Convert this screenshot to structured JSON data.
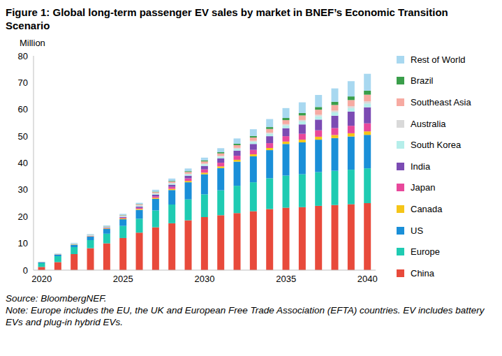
{
  "chart_data": {
    "type": "bar",
    "title": "Figure 1: Global long-term passenger EV sales by market in BNEF’s Economic Transition Scenario",
    "y_label": "Million",
    "source": "Source: BloombergNEF.",
    "note": "Note: Europe includes the EU, the UK and European Free Trade Association (EFTA) countries. EV includes battery EVs and plug-in hybrid EVs.",
    "stacked": true,
    "grid": false,
    "legend": "right",
    "categories": [
      "2020",
      null,
      null,
      null,
      null,
      "2025",
      null,
      null,
      null,
      null,
      "2030",
      null,
      null,
      null,
      null,
      "2035",
      null,
      null,
      null,
      null,
      "2040"
    ],
    "ylim": [
      0,
      80
    ],
    "yticks": [
      0,
      10,
      20,
      30,
      40,
      50,
      60,
      70,
      80
    ],
    "series": [
      {
        "name": "China",
        "color": "#e84a3b",
        "values": [
          1.2,
          3.0,
          6.0,
          8.2,
          10.0,
          12.0,
          14.0,
          16.0,
          17.5,
          18.6,
          19.8,
          20.5,
          21.3,
          22.0,
          22.8,
          23.3,
          23.5,
          24.0,
          24.3,
          24.6,
          25.0
        ]
      },
      {
        "name": "Europe",
        "color": "#1fcbb2",
        "values": [
          1.4,
          2.2,
          2.6,
          3.0,
          3.6,
          4.5,
          5.2,
          6.3,
          7.0,
          7.8,
          8.5,
          9.3,
          10.2,
          10.8,
          11.5,
          12.0,
          12.3,
          12.6,
          12.8,
          12.9,
          13.0
        ]
      },
      {
        "name": "US",
        "color": "#1a8fd8",
        "values": [
          0.3,
          0.6,
          0.9,
          1.3,
          1.8,
          2.5,
          3.3,
          4.3,
          5.4,
          6.4,
          7.5,
          8.3,
          9.0,
          9.7,
          10.5,
          11.8,
          11.9,
          12.1,
          12.2,
          12.4,
          12.5
        ]
      },
      {
        "name": "Canada",
        "color": "#f5c518",
        "values": [
          0.05,
          0.08,
          0.12,
          0.15,
          0.2,
          0.3,
          0.35,
          0.4,
          0.45,
          0.5,
          0.6,
          0.65,
          0.7,
          0.75,
          0.8,
          0.9,
          1.0,
          1.1,
          1.15,
          1.2,
          1.3
        ]
      },
      {
        "name": "Japan",
        "color": "#e8489b",
        "values": [
          0.03,
          0.05,
          0.06,
          0.1,
          0.15,
          0.3,
          0.4,
          0.55,
          0.75,
          0.95,
          1.2,
          1.35,
          1.5,
          1.65,
          1.8,
          2.0,
          2.2,
          2.4,
          2.6,
          2.8,
          3.0
        ]
      },
      {
        "name": "India",
        "color": "#7b4bb3",
        "values": [
          0.01,
          0.02,
          0.05,
          0.08,
          0.15,
          0.3,
          0.45,
          0.6,
          0.8,
          1.0,
          1.3,
          1.6,
          1.9,
          2.2,
          2.6,
          3.0,
          3.5,
          4.0,
          4.6,
          5.3,
          6.0
        ]
      },
      {
        "name": "South Korea",
        "color": "#b5eeea",
        "values": [
          0.05,
          0.1,
          0.15,
          0.18,
          0.22,
          0.3,
          0.35,
          0.4,
          0.45,
          0.5,
          0.6,
          0.65,
          0.7,
          0.8,
          0.9,
          1.0,
          1.1,
          1.2,
          1.25,
          1.3,
          1.4
        ]
      },
      {
        "name": "Australia",
        "color": "#d9d9d9",
        "values": [
          0.01,
          0.02,
          0.04,
          0.06,
          0.08,
          0.1,
          0.13,
          0.16,
          0.2,
          0.25,
          0.3,
          0.33,
          0.36,
          0.4,
          0.45,
          0.5,
          0.55,
          0.6,
          0.65,
          0.7,
          0.8
        ]
      },
      {
        "name": "Southeast Asia",
        "color": "#f7aaa2",
        "values": [
          0.01,
          0.02,
          0.05,
          0.08,
          0.12,
          0.2,
          0.3,
          0.4,
          0.5,
          0.65,
          0.8,
          0.9,
          1.0,
          1.2,
          1.35,
          1.5,
          1.7,
          1.9,
          2.1,
          2.3,
          2.5
        ]
      },
      {
        "name": "Brazil",
        "color": "#3a9e4a",
        "values": [
          0.01,
          0.02,
          0.03,
          0.05,
          0.07,
          0.1,
          0.15,
          0.2,
          0.25,
          0.3,
          0.4,
          0.45,
          0.5,
          0.6,
          0.7,
          0.8,
          0.9,
          1.0,
          1.2,
          1.35,
          1.5
        ]
      },
      {
        "name": "Rest of World",
        "color": "#a8d8f0",
        "values": [
          0.1,
          0.15,
          0.2,
          0.25,
          0.3,
          0.4,
          0.5,
          0.7,
          0.9,
          1.0,
          1.0,
          1.5,
          2.0,
          2.5,
          3.0,
          3.7,
          4.0,
          4.5,
          5.0,
          5.7,
          6.3
        ]
      }
    ]
  }
}
